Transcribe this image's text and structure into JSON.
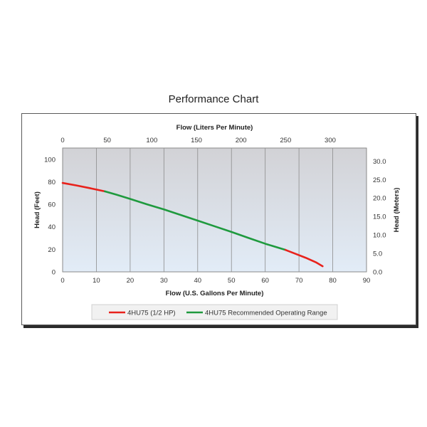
{
  "page": {
    "title": "Performance Chart"
  },
  "chart_data": {
    "type": "line",
    "title": "Performance Chart",
    "xlabel": "Flow (U.S. Gallons Per Minute)",
    "x2label": "Flow (Liters Per Minute)",
    "ylabel": "Head (Feet)",
    "y2label": "Head (Meters)",
    "xlim": [
      0,
      90
    ],
    "ylim": [
      0,
      110
    ],
    "x2lim": [
      0,
      340.7
    ],
    "y2lim": [
      0,
      33.53
    ],
    "x_ticks": [
      0,
      10,
      20,
      30,
      40,
      50,
      60,
      70,
      80,
      90
    ],
    "y_ticks": [
      0,
      20,
      40,
      60,
      80,
      100
    ],
    "x2_ticks": [
      0,
      50,
      100,
      150,
      200,
      250,
      300
    ],
    "y2_ticks": [
      "0.0",
      "5.0",
      "10.0",
      "15.0",
      "20.0",
      "25.0",
      "30.0"
    ],
    "y2_tick_values": [
      0,
      5,
      10,
      15,
      20,
      25,
      30
    ],
    "grid": true,
    "legend_position": "bottom",
    "colors": {
      "plot_bg_top": "#d2d2d6",
      "plot_bg_bottom": "#e2ecf7",
      "grid": "#8c8c8c",
      "red": "#e8221c",
      "green": "#1f9a3e"
    },
    "series": [
      {
        "name": "4HU75 (1/2 HP)",
        "color": "#e8221c",
        "x": [
          0,
          4,
          8,
          12.5
        ],
        "y": [
          79,
          76.8,
          74.4,
          71.5
        ],
        "x_tail": [
          66,
          69,
          72,
          75,
          77
        ],
        "y_tail": [
          19.5,
          16,
          12.5,
          8.5,
          5
        ]
      },
      {
        "name": "4HU75 Recommended Operating Range",
        "color": "#1f9a3e",
        "x": [
          12.5,
          16,
          20,
          25,
          30,
          35,
          40,
          45,
          50,
          55,
          60,
          66
        ],
        "y": [
          71.5,
          68.5,
          64.8,
          60,
          55.5,
          50.5,
          45.5,
          40.5,
          35.5,
          30.2,
          25,
          19.5
        ]
      }
    ]
  }
}
